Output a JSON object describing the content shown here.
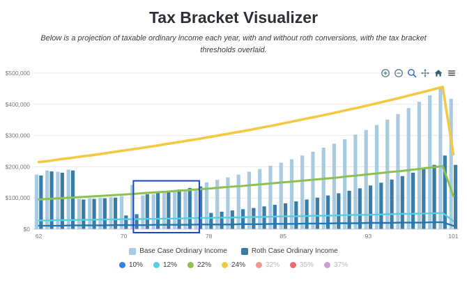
{
  "header": {
    "title": "Tax Bracket Visualizer",
    "subtitle": "Below is a projection of taxable ordinary income each year, with and without roth conversions, with the tax bracket thresholds overlaid."
  },
  "toolbar": {
    "icons": [
      "zoom-in",
      "zoom-out",
      "box-zoom",
      "pan",
      "reset-home",
      "menu"
    ]
  },
  "legend": {
    "series": [
      {
        "label": "Base Case Ordinary Income",
        "color": "#a9cbe2"
      },
      {
        "label": "Roth Case Ordinary Income",
        "color": "#3a7ca5"
      }
    ],
    "brackets": [
      {
        "label": "10%",
        "color": "#2f80ed",
        "active": true
      },
      {
        "label": "12%",
        "color": "#56cfe1",
        "active": true
      },
      {
        "label": "22%",
        "color": "#8cc152",
        "active": true
      },
      {
        "label": "24%",
        "color": "#f5c842",
        "active": true
      },
      {
        "label": "32%",
        "color": "#f4978a",
        "active": false
      },
      {
        "label": "35%",
        "color": "#ee6c6c",
        "active": false
      },
      {
        "label": "37%",
        "color": "#cf9fd6",
        "active": false
      }
    ]
  },
  "chart_data": {
    "type": "bar",
    "title": "",
    "xlabel": "",
    "ylabel": "",
    "ylim": [
      0,
      500000
    ],
    "y_tick_values": [
      0,
      100000,
      200000,
      300000,
      400000,
      500000
    ],
    "y_ticks": [
      "$0",
      "$100,000",
      "$200,000",
      "$300,000",
      "$400,000",
      "$500,000"
    ],
    "x_label_ticks": [
      62,
      70,
      78,
      85,
      93,
      101
    ],
    "grid": true,
    "legend_position": "bottom",
    "ages": [
      62,
      63,
      64,
      65,
      66,
      67,
      68,
      69,
      70,
      71,
      72,
      73,
      74,
      75,
      76,
      77,
      78,
      79,
      80,
      81,
      82,
      83,
      84,
      85,
      86,
      87,
      88,
      89,
      90,
      91,
      92,
      93,
      94,
      95,
      96,
      97,
      98,
      99,
      100,
      101
    ],
    "series": [
      {
        "name": "Base Case Ordinary Income",
        "type": "bar",
        "color": "#a9cbe2",
        "values": [
          175000,
          188000,
          184000,
          191000,
          97000,
          99000,
          101000,
          103000,
          106000,
          142000,
          108000,
          112000,
          116000,
          120000,
          124000,
          128000,
          150000,
          158000,
          166000,
          175000,
          184000,
          193000,
          203000,
          213000,
          224000,
          236000,
          248000,
          261000,
          274000,
          288000,
          303000,
          318000,
          334000,
          351000,
          369000,
          388000,
          408000,
          429000,
          451000,
          418000
        ]
      },
      {
        "name": "Roth Case Ordinary Income",
        "type": "bar",
        "color": "#3a7ca5",
        "values": [
          172000,
          185000,
          181000,
          188000,
          95000,
          97000,
          99000,
          101000,
          44000,
          48000,
          112000,
          117000,
          122000,
          127000,
          132000,
          137000,
          52000,
          56000,
          60000,
          64000,
          68000,
          73000,
          78000,
          83000,
          89000,
          95000,
          101000,
          108000,
          115000,
          123000,
          131000,
          140000,
          149000,
          159000,
          170000,
          181000,
          193000,
          206000,
          236000,
          206000
        ]
      },
      {
        "name": "10%",
        "type": "line",
        "color": "#1f77b4",
        "width": 2.4,
        "values": [
          11000,
          11000,
          11000,
          12000,
          12000,
          12000,
          12000,
          13000,
          13000,
          13000,
          13000,
          14000,
          14000,
          14000,
          14000,
          15000,
          15000,
          15000,
          15000,
          16000,
          16000,
          16000,
          17000,
          17000,
          17000,
          18000,
          18000,
          18000,
          19000,
          19000,
          19000,
          20000,
          20000,
          20000,
          21000,
          21000,
          21000,
          22000,
          22000,
          11000
        ]
      },
      {
        "name": "12%",
        "type": "line",
        "color": "#56cfe1",
        "width": 2.4,
        "values": [
          28000,
          28000,
          29000,
          29000,
          30000,
          30000,
          31000,
          31000,
          32000,
          32000,
          33000,
          33000,
          34000,
          34000,
          35000,
          36000,
          36000,
          37000,
          37000,
          38000,
          39000,
          39000,
          40000,
          41000,
          41000,
          42000,
          43000,
          43000,
          44000,
          45000,
          46000,
          46000,
          47000,
          48000,
          49000,
          49000,
          50000,
          51000,
          52000,
          26000
        ]
      },
      {
        "name": "22%",
        "type": "line",
        "color": "#8cc152",
        "width": 3,
        "values": [
          95000,
          97000,
          99000,
          101000,
          103000,
          105000,
          107000,
          109000,
          111000,
          113000,
          116000,
          118000,
          120000,
          123000,
          125000,
          128000,
          130000,
          133000,
          136000,
          138000,
          141000,
          144000,
          147000,
          150000,
          153000,
          156000,
          159000,
          162000,
          165000,
          169000,
          172000,
          176000,
          179000,
          183000,
          186000,
          190000,
          194000,
          198000,
          202000,
          106000
        ]
      },
      {
        "name": "24%",
        "type": "line",
        "color": "#f5c842",
        "width": 3.6,
        "values": [
          215000,
          219000,
          224000,
          228000,
          233000,
          237000,
          242000,
          247000,
          252000,
          257000,
          262000,
          267000,
          273000,
          278000,
          284000,
          289000,
          295000,
          301000,
          307000,
          313000,
          319000,
          326000,
          332000,
          339000,
          346000,
          353000,
          360000,
          367000,
          374000,
          382000,
          389000,
          397000,
          405000,
          413000,
          421000,
          430000,
          438000,
          447000,
          456000,
          240000
        ]
      }
    ],
    "selection_box": {
      "x0": 71.4,
      "x1": 77.6,
      "y0": 0,
      "y1": 155000,
      "color": "#1847cc"
    }
  }
}
